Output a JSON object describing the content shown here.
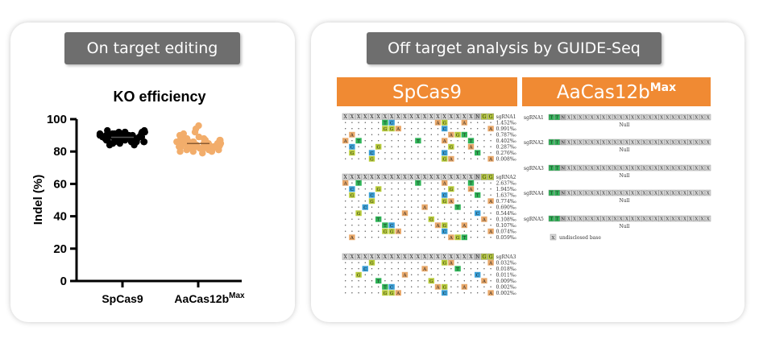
{
  "colors": {
    "card_bg": "#ffffff",
    "pill_bg": "#6e6e6e",
    "header_orange": "#f08a33",
    "spcas9_dot": "#000000",
    "aacas12b_dot": "#f2ad6b",
    "base_A": "#e8a86a",
    "base_C": "#3aa0d8",
    "base_G": "#b8cc3a",
    "base_T": "#2fb457",
    "base_X": "#d9d9d9"
  },
  "left_panel": {
    "pill_label": "On target editing",
    "chart_data": {
      "type": "scatter",
      "title": "KO efficiency",
      "xlabel": "",
      "ylabel": "Indel (%)",
      "ylim": [
        0,
        100
      ],
      "yticks": [
        0,
        20,
        40,
        60,
        80,
        100
      ],
      "categories": [
        "SpCas9",
        "AaCas12b"
      ],
      "category_superscripts": [
        "",
        "Max"
      ],
      "series": [
        {
          "category": "SpCas9",
          "color": "#000000",
          "values": [
            90,
            91,
            89,
            92,
            88,
            87,
            90,
            93,
            91,
            89,
            86,
            88,
            90,
            92,
            87,
            85,
            89,
            91,
            90,
            88,
            84,
            87,
            89,
            92,
            90,
            86,
            88,
            91,
            89,
            87,
            93,
            90,
            85,
            88,
            90,
            89,
            86,
            91,
            88,
            87,
            90,
            92,
            89,
            84,
            86,
            88,
            91,
            90,
            87,
            89,
            90,
            88,
            86,
            92,
            91,
            89,
            87,
            85,
            90,
            88
          ]
        },
        {
          "category": "AaCas12b",
          "color": "#f2ad6b",
          "values": [
            96,
            94,
            92,
            91,
            90,
            89,
            88,
            88,
            87,
            87,
            86,
            86,
            86,
            85,
            85,
            85,
            84,
            84,
            84,
            83,
            83,
            83,
            82,
            82,
            81,
            81,
            80,
            80,
            79,
            85,
            84,
            86,
            83,
            87,
            82,
            85,
            88,
            84,
            86,
            83,
            81,
            85,
            87,
            84,
            82,
            86,
            85,
            83,
            84,
            80,
            85,
            86,
            84,
            83,
            85,
            82,
            87,
            84,
            86,
            83
          ]
        }
      ]
    }
  },
  "right_panel": {
    "pill_label": "Off target analysis by GUIDE-Seq",
    "headers": [
      {
        "label": "SpCas9",
        "sup": ""
      },
      {
        "label": "AaCas12b",
        "sup": "Max"
      }
    ],
    "spcas9": {
      "groups": [
        {
          "name": "sgRNA1",
          "values": [
            "1.452‰",
            "0.991‰",
            "0.787‰",
            "0.402‰",
            "0.287‰",
            "0.276‰",
            "0.008‰"
          ]
        },
        {
          "name": "sgRNA2",
          "values": [
            "2.637‰",
            "1.945‰",
            "1.637‰",
            "0.774‰",
            "0.690‰",
            "0.544‰",
            "0.108‰",
            "0.107‰",
            "0.074‰",
            "0.059‰"
          ]
        },
        {
          "name": "sgRNA3",
          "values": [
            "0.032‰",
            "0.018‰",
            "0.011‰",
            "0.009‰",
            "0.002‰",
            "0.002‰"
          ]
        }
      ]
    },
    "aacas12b": {
      "groups": [
        {
          "name": "sgRNA1",
          "result": "Null"
        },
        {
          "name": "sgRNA2",
          "result": "Null"
        },
        {
          "name": "sgRNA3",
          "result": "Null"
        },
        {
          "name": "sgRNA4",
          "result": "Null"
        },
        {
          "name": "sgRNA5",
          "result": "Null"
        }
      ],
      "legend_symbol": "X",
      "legend_text": "undisclosed base"
    }
  }
}
